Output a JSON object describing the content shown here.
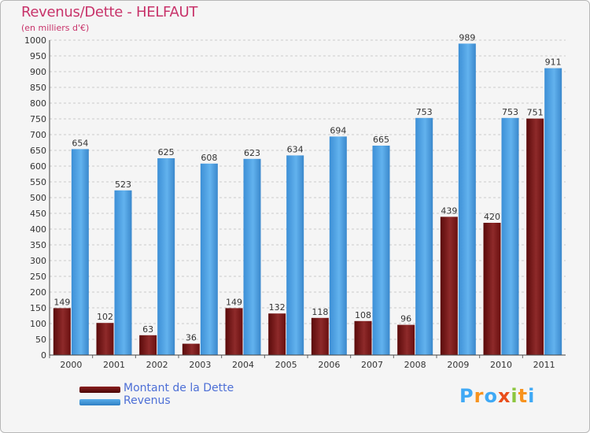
{
  "title": "Revenus/Dette - HELFAUT",
  "subtitle": "(en milliers d'€)",
  "logo": {
    "letters": [
      "P",
      "r",
      "o",
      "x",
      "i",
      "t",
      "i"
    ],
    "colors": [
      "#3fa9f5",
      "#f7931e",
      "#3fa9f5",
      "#e94e1b",
      "#8cc63f",
      "#f7931e",
      "#3fa9f5"
    ]
  },
  "legend": [
    {
      "label": "Montant de la Dette",
      "color": "#6b0f0f"
    },
    {
      "label": "Revenus",
      "color": "#4a9de0"
    }
  ],
  "colors": {
    "dette": "#7a1a1a",
    "revenus": "#4a9de0",
    "grid": "#cccccc",
    "background": "#f5f5f5",
    "title": "#c8336a"
  },
  "chart_data": {
    "type": "bar",
    "categories": [
      "2000",
      "2001",
      "2002",
      "2003",
      "2004",
      "2005",
      "2006",
      "2007",
      "2008",
      "2009",
      "2010",
      "2011"
    ],
    "series": [
      {
        "name": "Montant de la Dette",
        "values": [
          149,
          102,
          63,
          36,
          149,
          132,
          118,
          108,
          96,
          439,
          420,
          751
        ]
      },
      {
        "name": "Revenus",
        "values": [
          654,
          523,
          625,
          608,
          623,
          634,
          694,
          665,
          753,
          989,
          753,
          911
        ]
      }
    ],
    "title": "Revenus/Dette - HELFAUT",
    "subtitle": "(en milliers d'€)",
    "xlabel": "",
    "ylabel": "",
    "ylim": [
      0,
      1000
    ],
    "ytick_step": 50,
    "grid": true,
    "legend_position": "bottom-left"
  }
}
